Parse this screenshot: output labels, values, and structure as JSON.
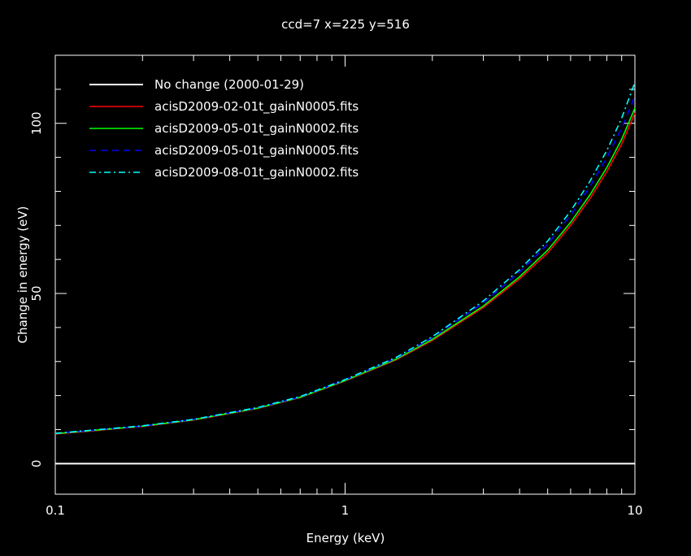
{
  "chart_data": {
    "type": "line",
    "title": "ccd=7 x=225 y=516",
    "xlabel": "Energy (keV)",
    "ylabel": "Change in energy (eV)",
    "xscale": "log",
    "xlim": [
      0.1,
      10
    ],
    "ylim": [
      -9,
      120
    ],
    "xticks": [
      0.1,
      1,
      10
    ],
    "xtick_labels": [
      "0.1",
      "1",
      "10"
    ],
    "yticks": [
      0,
      50,
      100
    ],
    "ytick_labels": [
      "0",
      "50",
      "100"
    ],
    "grid": false,
    "legend_position": "top-left",
    "series": [
      {
        "name": "No change (2000-01-29)",
        "color": "#ffffff",
        "dash": "solid",
        "x": [
          0.1,
          0.2,
          0.5,
          1,
          2,
          3,
          5,
          7,
          10
        ],
        "y": [
          0,
          0,
          0,
          0,
          0,
          0,
          0,
          0,
          0
        ]
      },
      {
        "name": "acisD2009-02-01t_gainN0005.fits",
        "color": "#ff0000",
        "dash": "solid",
        "x": [
          0.1,
          0.2,
          0.3,
          0.5,
          0.7,
          1,
          1.5,
          2,
          3,
          4,
          5,
          6,
          7,
          8,
          9,
          10
        ],
        "y": [
          8.7,
          10.9,
          12.8,
          16.2,
          19.4,
          24.3,
          30.5,
          36.2,
          45.9,
          54.3,
          61.9,
          70.0,
          77.9,
          85.8,
          93.9,
          103.0
        ]
      },
      {
        "name": "acisD2009-05-01t_gainN0002.fits",
        "color": "#00ff00",
        "dash": "solid",
        "x": [
          0.1,
          0.2,
          0.3,
          0.5,
          0.7,
          1,
          1.5,
          2,
          3,
          4,
          5,
          6,
          7,
          8,
          9,
          10
        ],
        "y": [
          8.8,
          11.0,
          12.9,
          16.3,
          19.5,
          24.4,
          30.7,
          36.5,
          46.3,
          54.9,
          62.7,
          70.9,
          79.0,
          87.0,
          95.3,
          104.5
        ]
      },
      {
        "name": "acisD2009-05-01t_gainN0005.fits",
        "color": "#0000ff",
        "dash": "dashed",
        "x": [
          0.1,
          0.2,
          0.3,
          0.5,
          0.7,
          1,
          1.5,
          2,
          3,
          4,
          5,
          6,
          7,
          8,
          9,
          10
        ],
        "y": [
          8.9,
          11.0,
          13.0,
          16.4,
          19.6,
          24.6,
          31.0,
          37.0,
          47.2,
          56.3,
          64.5,
          73.0,
          81.4,
          89.9,
          98.6,
          108.0
        ]
      },
      {
        "name": "acisD2009-08-01t_gainN0002.fits",
        "color": "#00ffff",
        "dash": "dashdot",
        "x": [
          0.1,
          0.2,
          0.3,
          0.5,
          0.7,
          1,
          1.5,
          2,
          3,
          4,
          5,
          6,
          7,
          8,
          9,
          10
        ],
        "y": [
          8.9,
          11.1,
          13.0,
          16.5,
          19.7,
          24.7,
          31.2,
          37.3,
          47.8,
          57.0,
          65.4,
          74.2,
          83.0,
          92.0,
          101.5,
          112.0
        ]
      }
    ]
  }
}
